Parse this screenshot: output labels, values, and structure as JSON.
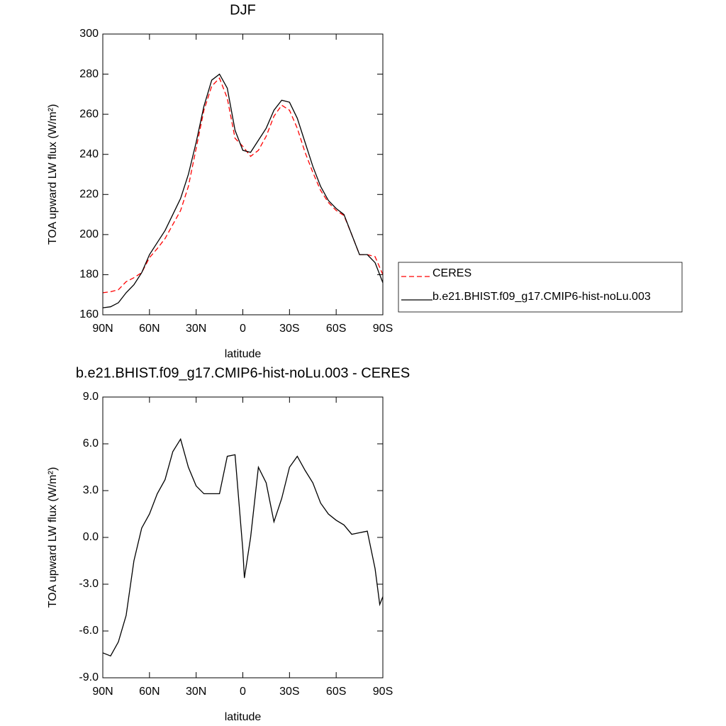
{
  "chart_data": [
    {
      "type": "line",
      "title": "DJF",
      "xlabel": "latitude",
      "ylabel": "TOA upward LW flux (W/m²)",
      "x": [
        90,
        85,
        80,
        75,
        70,
        65,
        60,
        55,
        50,
        45,
        40,
        35,
        30,
        25,
        20,
        15,
        10,
        5,
        0,
        -5,
        -10,
        -15,
        -20,
        -25,
        -30,
        -35,
        -40,
        -45,
        -50,
        -55,
        -60,
        -65,
        -70,
        -75,
        -80,
        -85,
        -90
      ],
      "series": [
        {
          "name": "CERES",
          "color": "#ff0000",
          "line_style": "dashed",
          "values": [
            171,
            171.5,
            172.5,
            176.5,
            178.5,
            181,
            188.5,
            193,
            198,
            205,
            212,
            224,
            243,
            262,
            274,
            278,
            268,
            248,
            244,
            239,
            242,
            249,
            259,
            264.5,
            262,
            253,
            241,
            231,
            222,
            216,
            212,
            209.5,
            200,
            190,
            190,
            189,
            180
          ]
        },
        {
          "name": "b.e21.BHIST.f09_g17.CMIP6-hist-noLu.003",
          "color": "#000000",
          "line_style": "solid",
          "values": [
            163.5,
            164,
            166,
            171,
            175,
            181,
            190,
            196,
            202,
            210,
            218,
            230,
            246,
            264,
            277,
            280,
            273,
            252,
            242,
            241,
            247,
            253,
            262,
            267,
            266,
            258,
            246,
            234,
            224,
            217,
            213,
            210,
            200,
            190,
            190,
            186,
            176
          ]
        }
      ],
      "xlim": [
        90,
        -90
      ],
      "xticks": [
        {
          "value": 90,
          "label": "90N"
        },
        {
          "value": 60,
          "label": "60N"
        },
        {
          "value": 30,
          "label": "30N"
        },
        0,
        {
          "value": -30,
          "label": "30S"
        },
        {
          "value": -60,
          "label": "60S"
        },
        {
          "value": -90,
          "label": "90S"
        }
      ],
      "ylim": [
        160,
        300
      ],
      "yticks": [
        160,
        180,
        200,
        220,
        240,
        260,
        280,
        300
      ],
      "legend": "right"
    },
    {
      "type": "line",
      "title": "b.e21.BHIST.f09_g17.CMIP6-hist-noLu.003 - CERES",
      "xlabel": "latitude",
      "ylabel": "TOA upward LW flux (W/m²)",
      "x": [
        90,
        85,
        80,
        75,
        70,
        65,
        60,
        55,
        50,
        45,
        40,
        35,
        30,
        25,
        20,
        15,
        10,
        5,
        0,
        -1,
        -5,
        -10,
        -15,
        -20,
        -25,
        -30,
        -35,
        -40,
        -45,
        -50,
        -55,
        -60,
        -65,
        -70,
        -75,
        -80,
        -85,
        -88,
        -90
      ],
      "series": [
        {
          "color": "#000000",
          "line_style": "solid",
          "values": [
            -7.4,
            -7.6,
            -6.7,
            -5,
            -1.5,
            0.6,
            1.5,
            2.8,
            3.7,
            5.5,
            6.3,
            4.5,
            3.3,
            2.8,
            2.8,
            2.8,
            5.2,
            5.3,
            -0.8,
            -2.6,
            0,
            4.5,
            3.5,
            1,
            2.5,
            4.5,
            5.2,
            4.3,
            3.5,
            2.2,
            1.5,
            1.1,
            0.8,
            0.2,
            0.3,
            0.4,
            -2,
            -4.3,
            -3.8
          ]
        }
      ],
      "xlim": [
        90,
        -90
      ],
      "xticks": [
        {
          "value": 90,
          "label": "90N"
        },
        {
          "value": 60,
          "label": "60N"
        },
        {
          "value": 30,
          "label": "30N"
        },
        0,
        {
          "value": -30,
          "label": "30S"
        },
        {
          "value": -60,
          "label": "60S"
        },
        {
          "value": -90,
          "label": "90S"
        }
      ],
      "ylim": [
        -9,
        9
      ],
      "yticks": [
        {
          "value": -9,
          "label": "-9.0"
        },
        {
          "value": -6,
          "label": "-6.0"
        },
        {
          "value": -3,
          "label": "-3.0"
        },
        {
          "value": 0,
          "label": "0.0"
        },
        {
          "value": 3,
          "label": "3.0"
        },
        {
          "value": 6,
          "label": "6.0"
        },
        {
          "value": 9,
          "label": "9.0"
        }
      ]
    }
  ]
}
